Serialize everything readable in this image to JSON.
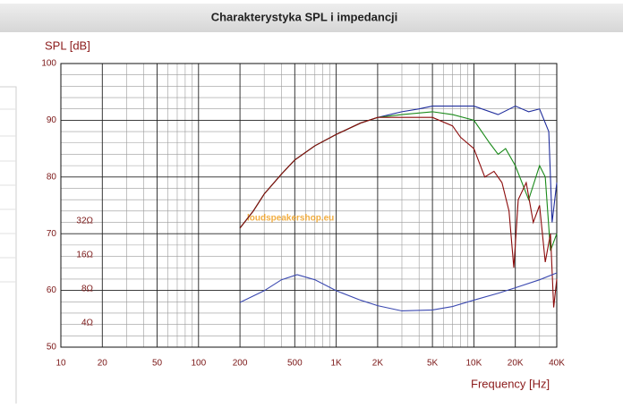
{
  "header": {
    "title": "Charakterystyka SPL i impedancji"
  },
  "chart_data": {
    "type": "line",
    "ylabel": "SPL [dB]",
    "xlabel": "Frequency [Hz]",
    "watermark": "loudspeakershop.eu",
    "xscale": "log",
    "xlim": [
      10,
      40000
    ],
    "xticks": [
      10,
      20,
      50,
      100,
      200,
      500,
      {
        "value": 1000,
        "label": "1K"
      },
      {
        "value": 2000,
        "label": "2K"
      },
      {
        "value": 5000,
        "label": "5K"
      },
      {
        "value": 10000,
        "label": "10K"
      },
      {
        "value": 20000,
        "label": "20K"
      },
      {
        "value": 40000,
        "label": "40K"
      }
    ],
    "xminor": [
      30,
      40,
      60,
      70,
      80,
      90,
      300,
      400,
      600,
      700,
      800,
      900,
      3000,
      4000,
      6000,
      7000,
      8000,
      9000,
      30000
    ],
    "ylim": [
      50,
      100
    ],
    "yticks": [
      50,
      60,
      70,
      80,
      90,
      100
    ],
    "yminor": [
      52,
      54,
      56,
      58,
      62,
      64,
      66,
      68,
      72,
      74,
      76,
      78,
      82,
      84,
      86,
      88,
      92,
      94,
      96,
      98
    ],
    "y2scale": "log",
    "y2lim": [
      2.53,
      823
    ],
    "y2ticks": [
      {
        "value": 4,
        "label": "4Ω"
      },
      {
        "value": 8,
        "label": "8Ω"
      },
      {
        "value": 16,
        "label": "16Ω"
      },
      {
        "value": 32,
        "label": "32Ω"
      }
    ],
    "grid": true,
    "series": [
      {
        "color": "#1f2d9c",
        "x": [
          200,
          250,
          300,
          400,
          500,
          700,
          1000,
          1500,
          2000,
          3000,
          4000,
          5000,
          7000,
          10000,
          15000,
          20000,
          25000,
          30000,
          35000,
          37000,
          40000
        ],
        "values": [
          71,
          74,
          77,
          80.5,
          83,
          85.5,
          87.5,
          89.5,
          90.5,
          91.5,
          92,
          92.5,
          92.5,
          92.5,
          91,
          92.5,
          91.5,
          92,
          88,
          72,
          79
        ]
      },
      {
        "color": "#1a8a1a",
        "x": [
          200,
          250,
          300,
          400,
          500,
          700,
          1000,
          1500,
          2000,
          3000,
          5000,
          7000,
          10000,
          13000,
          15000,
          17000,
          20000,
          25000,
          30000,
          33000,
          36000,
          40000
        ],
        "values": [
          71,
          74,
          77,
          80.5,
          83,
          85.5,
          87.5,
          89.5,
          90.5,
          91,
          91.5,
          91,
          90,
          86,
          84,
          85,
          82,
          76,
          82,
          80,
          67,
          70
        ]
      },
      {
        "color": "#8b0a0a",
        "x": [
          200,
          250,
          300,
          400,
          500,
          700,
          1000,
          1500,
          2000,
          3000,
          5000,
          7000,
          8000,
          10000,
          12000,
          14000,
          16000,
          18000,
          19500,
          21000,
          24000,
          27000,
          30000,
          33000,
          36000,
          38000,
          40000
        ],
        "values": [
          71,
          74,
          77,
          80.5,
          83,
          85.5,
          87.5,
          89.5,
          90.5,
          90.5,
          90.5,
          89,
          87,
          85,
          80,
          81,
          79,
          74,
          64,
          76,
          79,
          72,
          75,
          65,
          70,
          57,
          62
        ]
      },
      {
        "color": "#3a48b0",
        "axis": "y2",
        "x": [
          200,
          300,
          400,
          520,
          700,
          1000,
          1500,
          2000,
          3000,
          5000,
          7000,
          10000,
          15000,
          20000,
          30000,
          40000
        ],
        "values": [
          6.3,
          8.0,
          10.0,
          11.1,
          10.0,
          8.0,
          6.6,
          5.9,
          5.3,
          5.4,
          5.8,
          6.6,
          7.6,
          8.5,
          10,
          11.5
        ]
      }
    ]
  }
}
